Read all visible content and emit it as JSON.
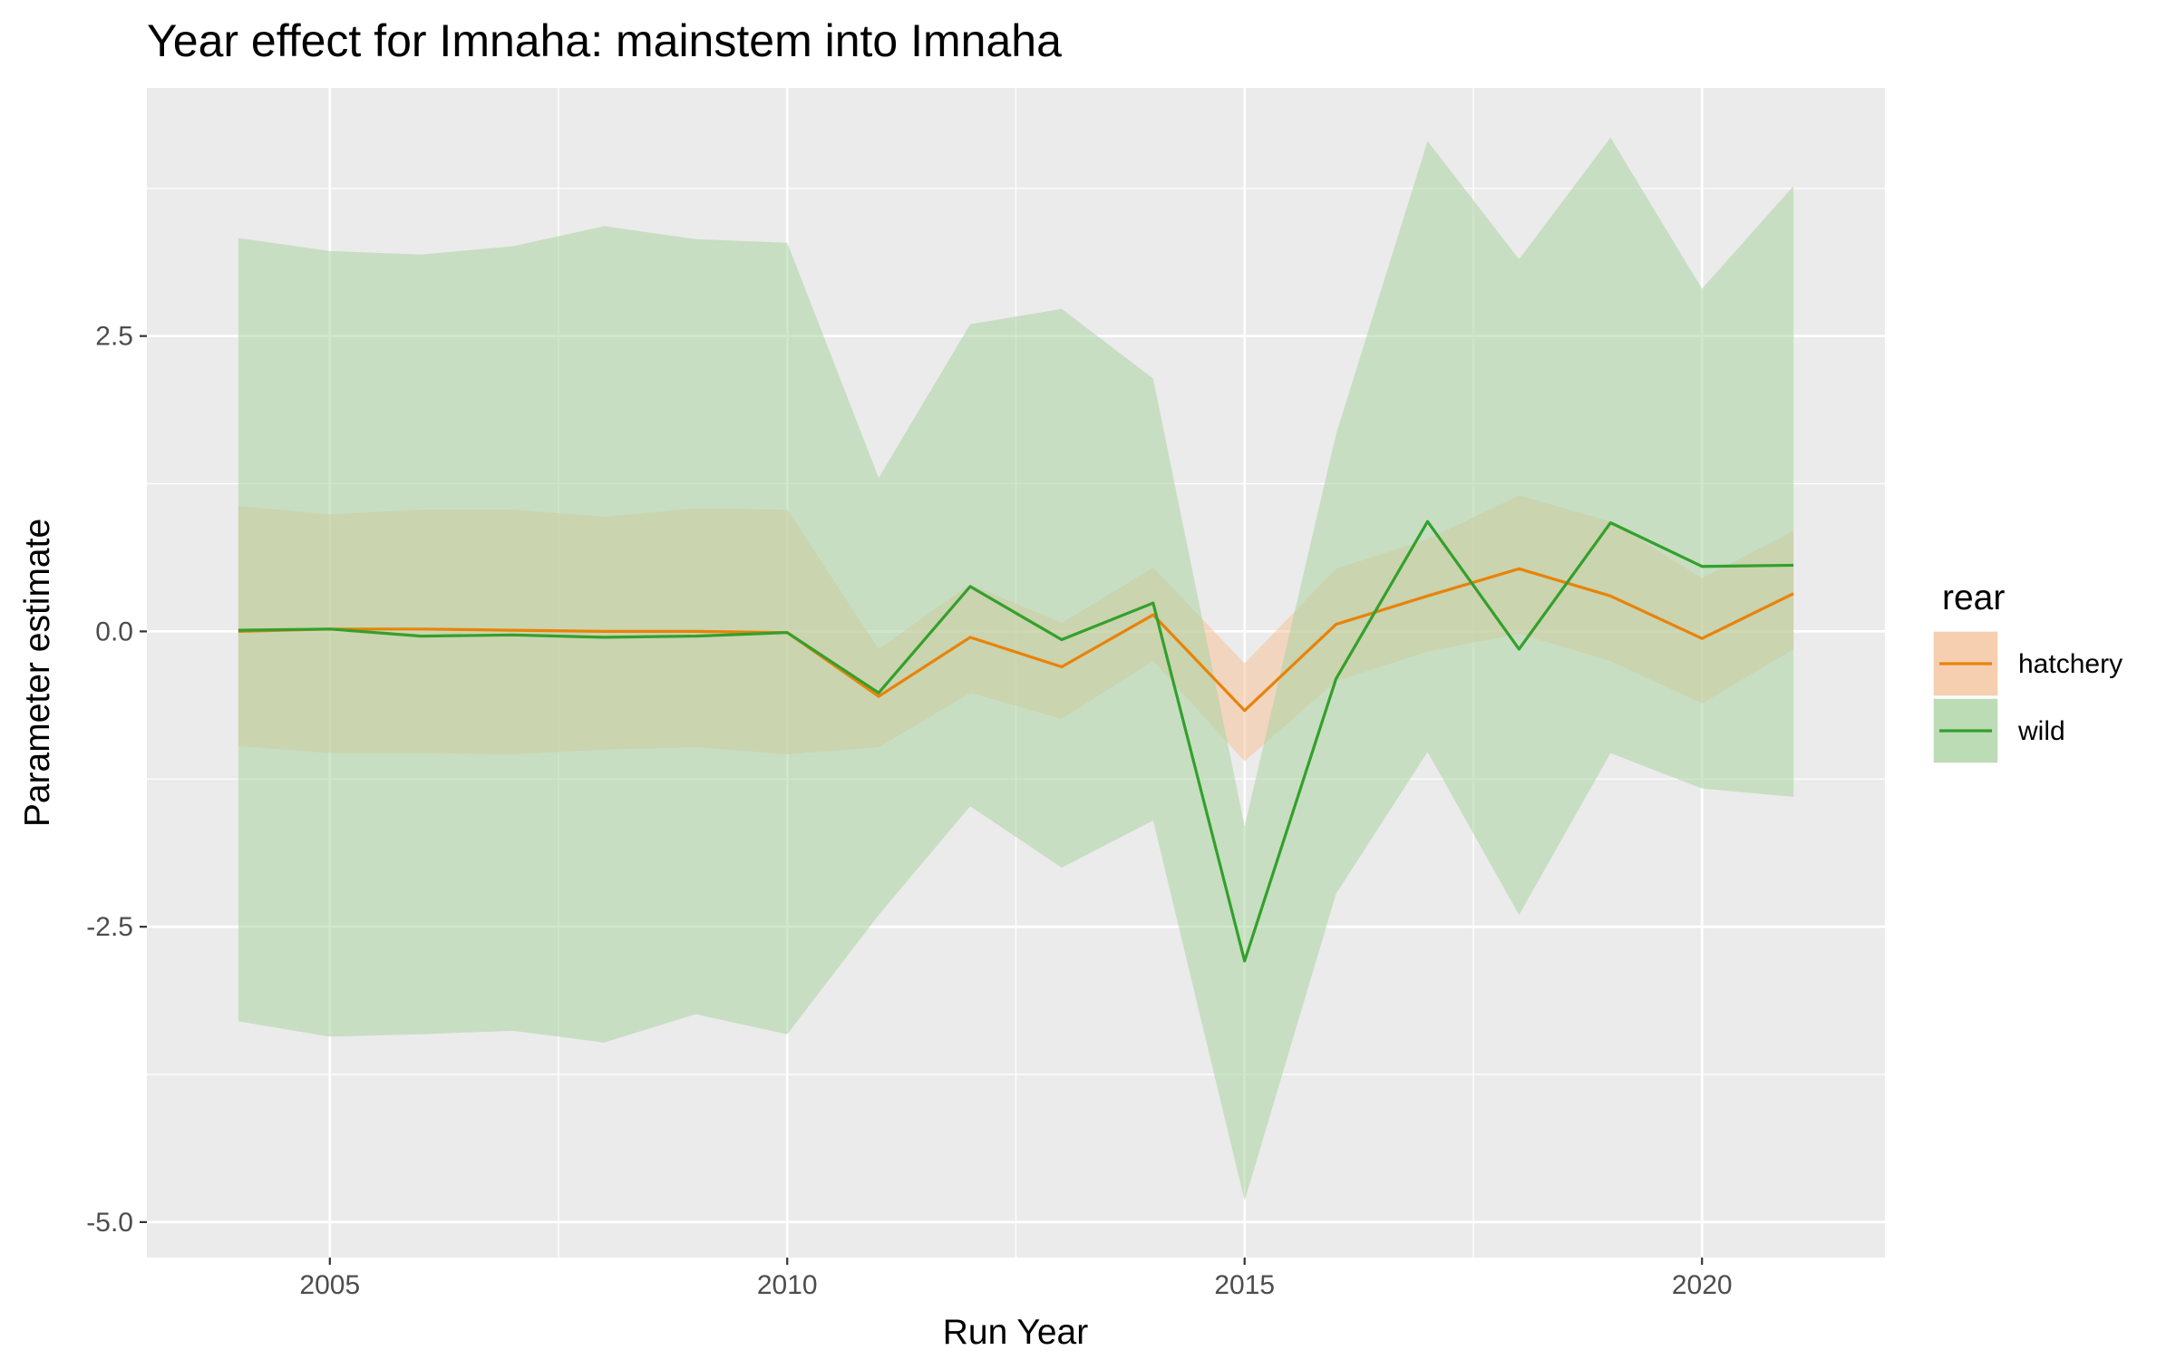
{
  "chart_data": {
    "type": "line",
    "title": "Year effect for Imnaha: mainstem into Imnaha",
    "xlabel": "Run Year",
    "ylabel": "Parameter estimate",
    "xlim": [
      2003,
      2022
    ],
    "ylim": [
      -5.3,
      4.6
    ],
    "x_ticks": [
      2005,
      2010,
      2015,
      2020
    ],
    "x_tick_labels": [
      "2005",
      "2010",
      "2015",
      "2020"
    ],
    "y_ticks": [
      2.5,
      0,
      -2.5,
      -5
    ],
    "y_tick_labels": [
      "2.5",
      "0.0",
      "-2.5",
      "-5.0"
    ],
    "grid": true,
    "legend": {
      "title": "rear",
      "position": "right"
    },
    "x": [
      2004,
      2005,
      2006,
      2007,
      2008,
      2009,
      2010,
      2011,
      2012,
      2013,
      2014,
      2015,
      2016,
      2017,
      2018,
      2019,
      2020,
      2021
    ],
    "series": [
      {
        "name": "hatchery",
        "color": "#e8830a",
        "fill": "#f6c39a",
        "values": [
          0.0,
          0.02,
          0.02,
          0.01,
          0.0,
          0.0,
          -0.01,
          -0.55,
          -0.05,
          -0.3,
          0.14,
          -0.67,
          0.06,
          0.3,
          0.53,
          0.3,
          -0.06,
          0.32
        ],
        "lower": [
          -0.97,
          -1.03,
          -1.03,
          -1.04,
          -1.0,
          -0.98,
          -1.04,
          -0.98,
          -0.52,
          -0.74,
          -0.25,
          -1.1,
          -0.42,
          -0.17,
          -0.02,
          -0.25,
          -0.61,
          -0.15
        ],
        "upper": [
          1.06,
          0.99,
          1.03,
          1.03,
          0.97,
          1.04,
          1.03,
          -0.15,
          0.4,
          0.07,
          0.54,
          -0.27,
          0.53,
          0.78,
          1.15,
          0.93,
          0.45,
          0.85
        ]
      },
      {
        "name": "wild",
        "color": "#33a02c",
        "fill": "#a9d4a0",
        "values": [
          0.01,
          0.02,
          -0.04,
          -0.03,
          -0.05,
          -0.04,
          -0.01,
          -0.52,
          0.38,
          -0.07,
          0.24,
          -2.79,
          -0.4,
          0.93,
          -0.15,
          0.92,
          0.55,
          0.56
        ],
        "lower": [
          -3.3,
          -3.43,
          -3.41,
          -3.38,
          -3.48,
          -3.24,
          -3.41,
          -2.4,
          -1.48,
          -2.0,
          -1.6,
          -4.82,
          -2.22,
          -1.02,
          -2.4,
          -1.03,
          -1.33,
          -1.4
        ],
        "upper": [
          3.33,
          3.22,
          3.19,
          3.26,
          3.43,
          3.32,
          3.29,
          1.3,
          2.6,
          2.73,
          2.14,
          -1.65,
          1.67,
          4.15,
          3.15,
          4.18,
          2.9,
          3.77
        ]
      }
    ]
  }
}
